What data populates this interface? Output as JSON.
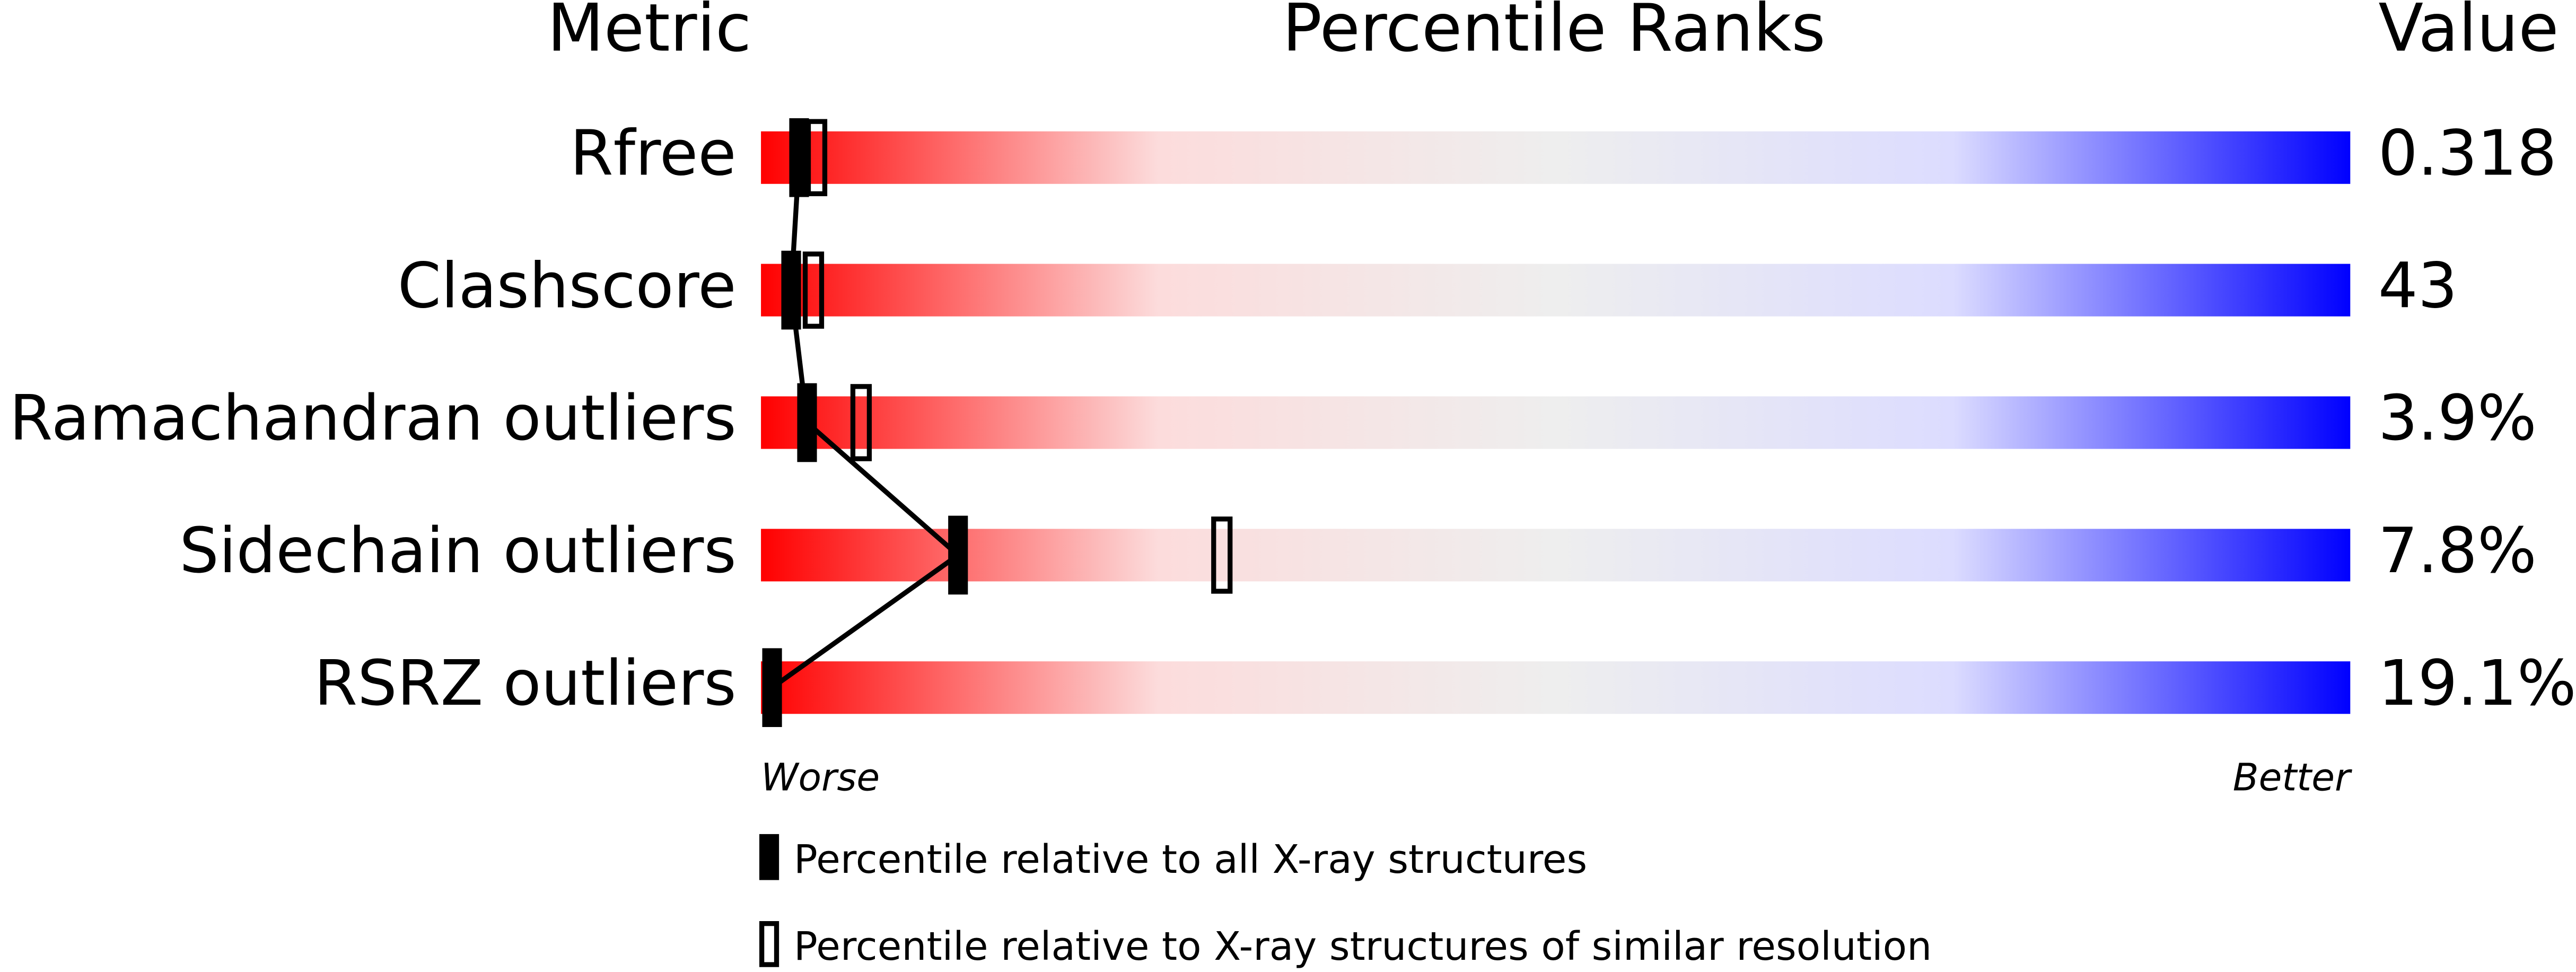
{
  "chart_data": {
    "type": "percentile",
    "headers": [
      "Metric",
      "Percentile Ranks",
      "Value"
    ],
    "categories": [
      "Rfree",
      "Clashscore",
      "Ramachandran outliers",
      "Sidechain outliers",
      "RSRZ outliers"
    ],
    "reported_values": [
      "0.318",
      "43",
      "3.9%",
      "7.8%",
      "19.1%"
    ],
    "xlabel_left": "Worse",
    "xlabel_right": "Better",
    "xlim": [
      0,
      100
    ],
    "series": [
      {
        "name": "Percentile relative to all X-ray structures",
        "color": "#000000",
        "marker": "filled",
        "connect": true,
        "values": [
          2.4,
          1.9,
          2.9,
          12.4,
          0.7
        ]
      },
      {
        "name": "Percentile relative to X-ray structures of similar resolution",
        "color": "#000000",
        "marker": "open",
        "connect": false,
        "values": [
          3.5,
          3.3,
          6.3,
          29,
          null
        ]
      }
    ],
    "gradient": [
      "#ff0000",
      "#fcdcdc",
      "#eeeeee",
      "#dcdcff",
      "#0000ff"
    ]
  }
}
